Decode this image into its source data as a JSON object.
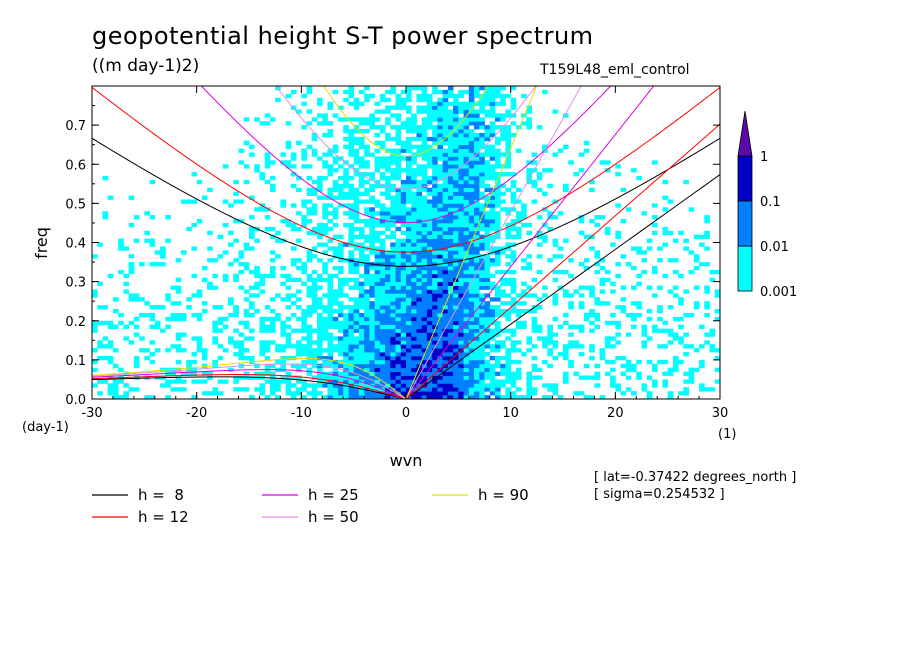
{
  "header": {
    "title": "geopotential height S-T power spectrum",
    "units": "((m day-1)2)",
    "run": "T159L48_eml_control"
  },
  "info": {
    "lat": "[ lat=-0.37422 degrees_north ]",
    "sigma": "[ sigma=0.254532 ]"
  },
  "chart_data": {
    "type": "heatmap",
    "title": "geopotential height S-T power spectrum",
    "xlabel": "wvn",
    "ylabel": "freq",
    "x_unit_label": "(1)",
    "y_unit_label": "(day-1)",
    "xlim": [
      -30,
      30
    ],
    "ylim": [
      0,
      0.8
    ],
    "x_ticks": [
      -30,
      -20,
      -10,
      0,
      10,
      20,
      30
    ],
    "y_ticks": [
      0.0,
      0.1,
      0.2,
      0.3,
      0.4,
      0.5,
      0.6,
      0.7
    ],
    "x_tick_labels": [
      "-30",
      "-20",
      "-10",
      "0",
      "10",
      "20",
      "30"
    ],
    "y_tick_labels": [
      "0.0",
      "0.1",
      "0.2",
      "0.3",
      "0.4",
      "0.5",
      "0.6",
      "0.7"
    ],
    "colorbar": {
      "levels": [
        "0.001",
        "0.01",
        "0.1",
        "1"
      ],
      "colors": [
        "#00ffff",
        "#0080ff",
        "#0000c8",
        "#5a0aa8"
      ]
    },
    "dispersion_curves": [
      {
        "label": "h =  8",
        "h": 8,
        "color": "#000000"
      },
      {
        "label": "h = 12",
        "h": 12,
        "color": "#ff0000"
      },
      {
        "label": "h = 25",
        "h": 25,
        "color": "#e000e0"
      },
      {
        "label": "h = 50",
        "h": 50,
        "color": "#e090e0"
      },
      {
        "label": "h = 90",
        "h": 90,
        "color": "#e0e000"
      }
    ]
  }
}
